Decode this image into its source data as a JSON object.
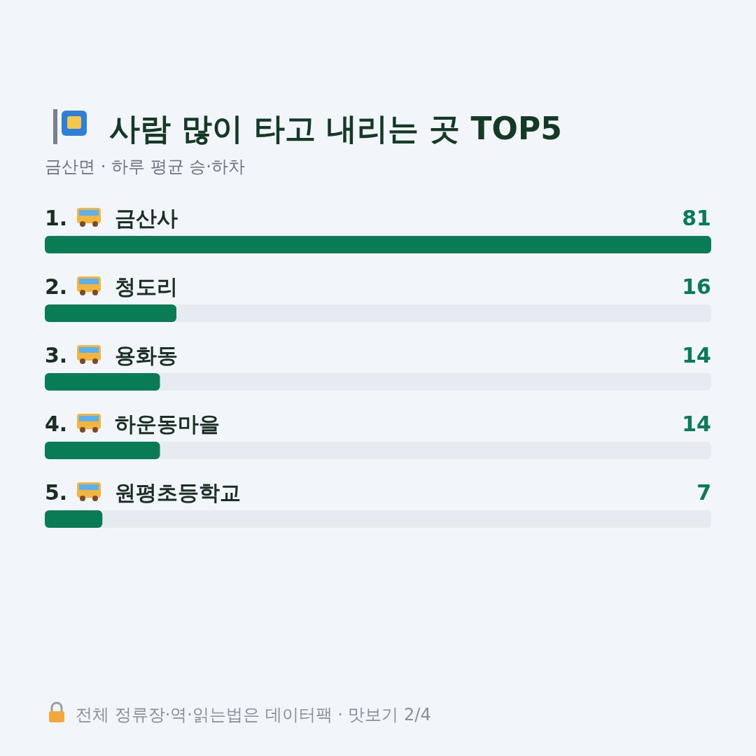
{
  "chart_data": {
    "type": "bar",
    "orientation": "horizontal",
    "title": "사람 많이 타고 내리는 곳 TOP5",
    "subtitle": "금산면 · 하루 평균 승·하차",
    "categories": [
      "1. 금산사",
      "2. 청도리",
      "3. 용화동",
      "4. 하운동마을",
      "5. 원평초등학교"
    ],
    "values": [
      81,
      16,
      14,
      14,
      7
    ],
    "color": "#0a7c55",
    "data_labels": true,
    "annotations": [
      "전체 정류장·역·읽는법은 데이터팩 · 맛보기 2/4"
    ]
  }
}
